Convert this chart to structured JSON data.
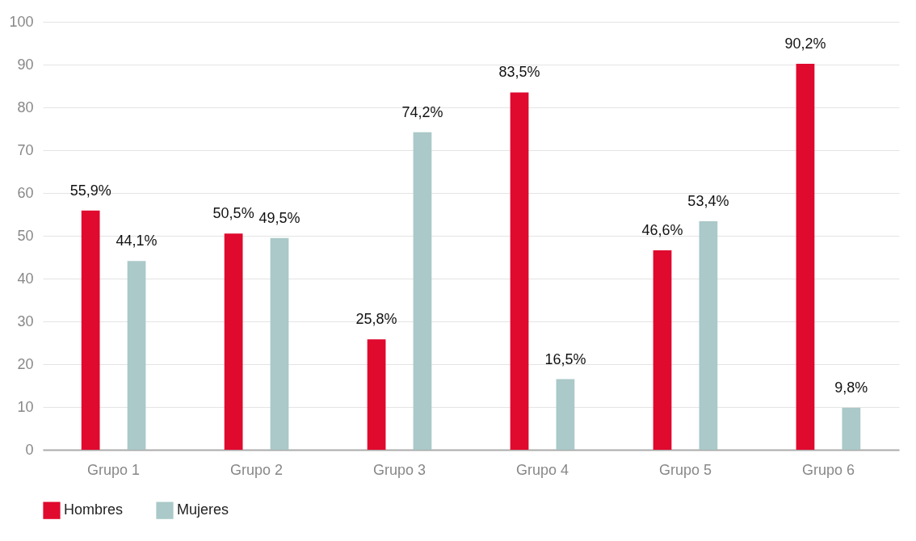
{
  "chart_data": {
    "type": "bar",
    "categories": [
      "Grupo 1",
      "Grupo 2",
      "Grupo 3",
      "Grupo 4",
      "Grupo 5",
      "Grupo 6"
    ],
    "series": [
      {
        "name": "Hombres",
        "color": "#e0092e",
        "values": [
          55.9,
          50.5,
          25.8,
          83.5,
          46.6,
          90.2
        ],
        "value_labels": [
          "55,9%",
          "50,5%",
          "25,8%",
          "83,5%",
          "46,6%",
          "90,2%"
        ]
      },
      {
        "name": "Mujeres",
        "color": "#aac9c8",
        "values": [
          44.1,
          49.5,
          74.2,
          16.5,
          53.4,
          9.8
        ],
        "value_labels": [
          "44,1%",
          "49,5%",
          "74,2%",
          "16,5%",
          "53,4%",
          "9,8%"
        ]
      }
    ],
    "ylim": [
      0,
      100
    ],
    "yticks": [
      0,
      10,
      20,
      30,
      40,
      50,
      60,
      70,
      80,
      90,
      100
    ],
    "grid": "y",
    "legend": "bottom left"
  }
}
